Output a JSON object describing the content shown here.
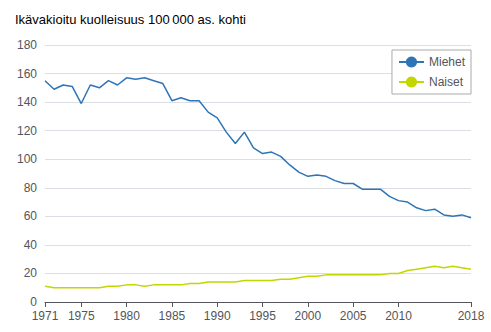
{
  "chart_data": {
    "type": "line",
    "title": "Ikävakioitu kuolleisuus 100 000 as. kohti",
    "x": [
      1971,
      1972,
      1973,
      1974,
      1975,
      1976,
      1977,
      1978,
      1979,
      1980,
      1981,
      1982,
      1983,
      1984,
      1985,
      1986,
      1987,
      1988,
      1989,
      1990,
      1991,
      1992,
      1993,
      1994,
      1995,
      1996,
      1997,
      1998,
      1999,
      2000,
      2001,
      2002,
      2003,
      2004,
      2005,
      2006,
      2007,
      2008,
      2009,
      2010,
      2011,
      2012,
      2013,
      2014,
      2015,
      2016,
      2017,
      2018
    ],
    "series": [
      {
        "name": "Miehet",
        "color": "#2e75b6",
        "values": [
          155,
          149,
          152,
          151,
          139,
          152,
          150,
          155,
          152,
          157,
          156,
          157,
          155,
          153,
          141,
          143,
          141,
          141,
          133,
          129,
          119,
          111,
          119,
          108,
          104,
          105,
          102,
          96,
          91,
          88,
          89,
          88,
          85,
          83,
          83,
          79,
          79,
          79,
          74,
          71,
          70,
          66,
          64,
          65,
          61,
          60,
          61,
          59
        ]
      },
      {
        "name": "Naiset",
        "color": "#c4d600",
        "values": [
          11,
          10,
          10,
          10,
          10,
          10,
          10,
          11,
          11,
          12,
          12,
          11,
          12,
          12,
          12,
          12,
          13,
          13,
          14,
          14,
          14,
          14,
          15,
          15,
          15,
          15,
          16,
          16,
          17,
          18,
          18,
          19,
          19,
          19,
          19,
          19,
          19,
          19,
          20,
          20,
          22,
          23,
          24,
          25,
          24,
          25,
          24,
          23
        ]
      }
    ],
    "xlim": [
      1971,
      2018
    ],
    "xticks": [
      1971,
      1975,
      1980,
      1985,
      1990,
      1995,
      2000,
      2005,
      2010,
      2018
    ],
    "ylim": [
      0,
      180
    ],
    "yticks": [
      0,
      20,
      40,
      60,
      80,
      100,
      120,
      140,
      160,
      180
    ],
    "grid": true,
    "legend": "upper right"
  }
}
